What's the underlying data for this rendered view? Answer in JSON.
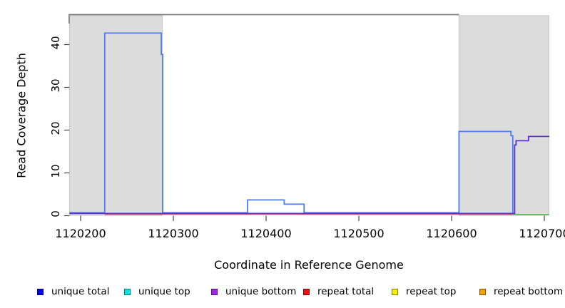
{
  "figure": {
    "xlabel": "Coordinate in Reference Genome",
    "ylabel": "Read Coverage Depth"
  },
  "chart_data": {
    "type": "line",
    "subtype": "step-coverage",
    "title": "",
    "xlabel": "Coordinate in Reference Genome",
    "ylabel": "Read Coverage Depth",
    "xlim": [
      1120188,
      1120705
    ],
    "ylim": [
      0,
      47
    ],
    "xticks": [
      1120200,
      1120300,
      1120400,
      1120500,
      1120600,
      1120700
    ],
    "yticks": [
      0,
      10,
      20,
      30,
      40
    ],
    "grid": false,
    "legend_position": "bottom",
    "shaded_regions": [
      {
        "start": 1120188,
        "end": 1120288,
        "color": "#dcdcdc"
      },
      {
        "start": 1120608,
        "end": 1120705,
        "color": "#dcdcdc"
      }
    ],
    "series": [
      {
        "name": "unique total",
        "color": "#4d7df0",
        "points": [
          [
            1120188,
            0
          ],
          [
            1120226,
            0
          ],
          [
            1120226,
            42
          ],
          [
            1120287,
            42
          ],
          [
            1120287,
            37
          ],
          [
            1120288.5,
            37
          ],
          [
            1120288.5,
            0
          ],
          [
            1120380,
            0
          ],
          [
            1120380,
            3
          ],
          [
            1120419.5,
            3
          ],
          [
            1120419.5,
            2
          ],
          [
            1120441,
            2
          ],
          [
            1120441,
            0
          ],
          [
            1120608,
            0
          ],
          [
            1120608,
            19
          ],
          [
            1120664,
            19
          ],
          [
            1120664,
            18
          ],
          [
            1120666,
            18
          ],
          [
            1120666,
            0
          ]
        ]
      },
      {
        "name": "unique bottom",
        "color": "#5b2ed8",
        "points": [
          [
            1120188,
            0
          ],
          [
            1120668,
            0
          ],
          [
            1120668,
            16
          ],
          [
            1120669.5,
            16
          ],
          [
            1120669.5,
            17
          ],
          [
            1120683,
            17
          ],
          [
            1120683,
            18
          ],
          [
            1120705.5,
            18
          ]
        ]
      },
      {
        "name": "repeat total",
        "color": "#e04848",
        "points": [
          [
            1120226,
            0
          ],
          [
            1120666,
            0
          ]
        ]
      },
      {
        "name": "unlabeled-green",
        "color": "#5abf5a",
        "points": [
          [
            1120666,
            0
          ],
          [
            1120705,
            0
          ]
        ]
      }
    ]
  },
  "legend": {
    "items": [
      {
        "label": "unique total",
        "color": "#0000ee"
      },
      {
        "label": "unique top",
        "color": "#00e5e5"
      },
      {
        "label": "unique bottom",
        "color": "#a322f0"
      },
      {
        "label": "repeat total",
        "color": "#ee1111"
      },
      {
        "label": "repeat top",
        "color": "#f2f200"
      },
      {
        "label": "repeat bottom",
        "color": "#f0a000"
      }
    ]
  }
}
